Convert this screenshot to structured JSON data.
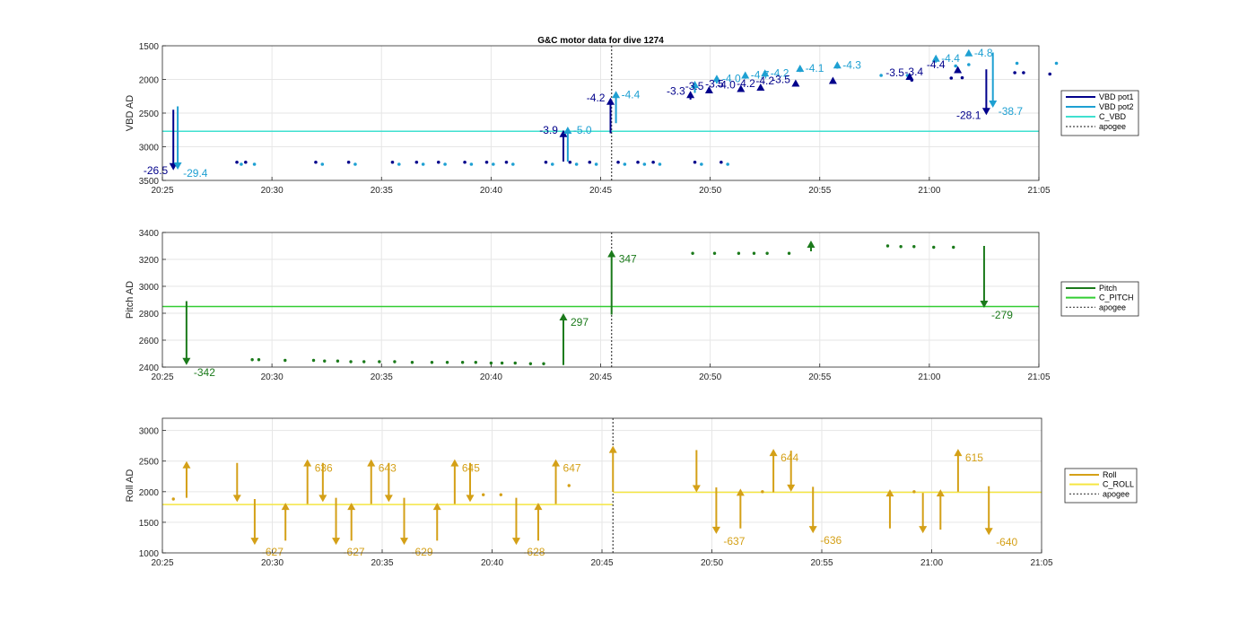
{
  "chart_data": [
    {
      "type": "scatter",
      "title": "G&C motor data for dive 1274",
      "xlabel": "",
      "ylabel": "VBD AD",
      "x_ticks": [
        "20:25",
        "20:30",
        "20:35",
        "20:40",
        "20:45",
        "20:50",
        "20:55",
        "21:00",
        "21:05"
      ],
      "xlim_min": [
        0,
        40
      ],
      "y_ticks": [
        "1500",
        "2000",
        "2500",
        "3000",
        "3500"
      ],
      "ylim": [
        1500,
        3500
      ],
      "y_reversed": true,
      "grid": true,
      "legend_placement": "outside-right",
      "legend": [
        {
          "label": "VBD pot1",
          "style": "solid",
          "color": "#00008b"
        },
        {
          "label": "VBD pot2",
          "style": "solid",
          "color": "#1ea0d2"
        },
        {
          "label": "C_VBD",
          "style": "solid",
          "color": "#40e0d0"
        },
        {
          "label": "apogee",
          "style": "dotted",
          "color": "#404040"
        }
      ],
      "reference_lines": [
        {
          "name": "C_VBD",
          "y": 2770,
          "color": "#40e0d0"
        },
        {
          "name": "apogee",
          "x": 20.5,
          "color": "#404040"
        }
      ],
      "series": [
        {
          "name": "VBD pot1",
          "color": "#00008b",
          "x": [
            3.4,
            3.8,
            7.0,
            8.5,
            10.5,
            11.6,
            12.6,
            13.8,
            14.8,
            15.7,
            17.5,
            18.6,
            19.5,
            20.8,
            21.7,
            22.4,
            24.3,
            25.5
          ],
          "y": [
            3230,
            3230,
            3230,
            3230,
            3230,
            3230,
            3230,
            3230,
            3230,
            3230,
            3230,
            3230,
            3230,
            3230,
            3230,
            3230,
            3230,
            3230
          ]
        },
        {
          "name": "VBD pot2",
          "color": "#1ea0d2",
          "x": [
            3.6,
            4.2,
            7.3,
            8.8,
            10.8,
            11.9,
            12.9,
            14.1,
            15.1,
            16.0,
            17.8,
            18.9,
            19.8,
            21.1,
            22.0,
            22.7,
            24.6,
            25.8
          ],
          "y": [
            3260,
            3260,
            3260,
            3260,
            3260,
            3260,
            3260,
            3260,
            3260,
            3260,
            3260,
            3260,
            3260,
            3260,
            3260,
            3260,
            3260,
            3260
          ]
        },
        {
          "name": "VBD pot1 (post-apogee)",
          "color": "#00008b",
          "x": [
            34.2,
            36.0,
            36.5,
            38.9,
            39.3,
            40.5
          ],
          "y": [
            2010,
            1980,
            1975,
            1900,
            1900,
            1920
          ]
        },
        {
          "name": "VBD pot2 (post-apogee)",
          "color": "#1ea0d2",
          "x": [
            32.8,
            34.0,
            36.2,
            36.8,
            39.0,
            40.8
          ],
          "y": [
            1940,
            1940,
            1800,
            1780,
            1760,
            1760
          ]
        }
      ],
      "moves": [
        {
          "series": "VBD pot1",
          "x": 0.5,
          "y_from": 2450,
          "y_to": 3350,
          "label": "-26.5"
        },
        {
          "series": "VBD pot2",
          "x": 0.7,
          "y_from": 2400,
          "y_to": 3340,
          "label": "-29.4"
        },
        {
          "series": "VBD pot1",
          "x": 18.3,
          "y_from": 3220,
          "y_to": 2750,
          "label": "-3.9"
        },
        {
          "series": "VBD pot2",
          "x": 18.5,
          "y_from": 3220,
          "y_to": 2700,
          "label": "-5.0"
        },
        {
          "series": "VBD pot1",
          "x": 20.45,
          "y_from": 2800,
          "y_to": 2270,
          "label": "-4.2"
        },
        {
          "series": "VBD pot2",
          "x": 20.7,
          "y_from": 2650,
          "y_to": 2170,
          "label": "-4.4"
        },
        {
          "series": "VBD pot1",
          "x": 24.1,
          "y_from": 2300,
          "y_to": 2170,
          "label": "-3.3"
        },
        {
          "series": "VBD pot2",
          "x": 24.3,
          "y_from": 2200,
          "y_to": 2020,
          "label": ""
        },
        {
          "series": "VBD pot1",
          "x": 24.95,
          "y_from": 2180,
          "y_to": 2100,
          "label": "-3.5"
        },
        {
          "series": "VBD pot2",
          "x": 25.3,
          "y_from": 2060,
          "y_to": 1930,
          "label": "-4.0"
        },
        {
          "series": "VBD pot1",
          "x": 26.4,
          "y_from": 2160,
          "y_to": 2080,
          "label": "-4.0"
        },
        {
          "series": "VBD pot2",
          "x": 26.6,
          "y_from": 1990,
          "y_to": 1880,
          "label": "-4.7"
        },
        {
          "series": "VBD pot1",
          "x": 27.3,
          "y_from": 2140,
          "y_to": 2060,
          "label": "-4.2"
        },
        {
          "series": "VBD pot2",
          "x": 27.5,
          "y_from": 1960,
          "y_to": 1850,
          "label": "-4.2"
        },
        {
          "series": "VBD pot1",
          "x": 28.9,
          "y_from": 2080,
          "y_to": 2000,
          "label": "-3.5"
        },
        {
          "series": "VBD pot2",
          "x": 29.1,
          "y_from": 1890,
          "y_to": 1780,
          "label": "-4.1"
        },
        {
          "series": "VBD pot1",
          "x": 30.6,
          "y_from": 2040,
          "y_to": 1960,
          "label": ""
        },
        {
          "series": "VBD pot2",
          "x": 30.8,
          "y_from": 1840,
          "y_to": 1730,
          "label": "-4.3"
        },
        {
          "series": "VBD pot1",
          "x": 34.1,
          "y_from": 1990,
          "y_to": 1900,
          "label": "-3.5"
        },
        {
          "series": "VBD pot2",
          "x": 35.3,
          "y_from": 1750,
          "y_to": 1630,
          "label": "-4.4"
        },
        {
          "series": "VBD pot1",
          "x": 36.3,
          "y_from": 1900,
          "y_to": 1800,
          "label": ""
        },
        {
          "series": "VBD pot2",
          "x": 36.8,
          "y_from": 1650,
          "y_to": 1550,
          "label": "-4.8"
        },
        {
          "series": "VBD pot1",
          "x": 37.6,
          "y_from": 1850,
          "y_to": 2530,
          "label": "-28.1"
        },
        {
          "series": "VBD pot2",
          "x": 37.9,
          "y_from": 1600,
          "y_to": 2420,
          "label": "-38.7"
        }
      ],
      "extra_labels": [
        {
          "text": "-3.4",
          "x": 34.3,
          "y": 1940
        },
        {
          "text": "-4.4",
          "x": 35.3,
          "y": 1830
        },
        {
          "text": "-4.2",
          "x": 27.5,
          "y": 2070
        },
        {
          "text": "-3.5",
          "x": 25.2,
          "y": 2120
        }
      ]
    },
    {
      "type": "scatter",
      "xlabel": "",
      "ylabel": "Pitch AD",
      "x_ticks": [
        "20:25",
        "20:30",
        "20:35",
        "20:40",
        "20:45",
        "20:50",
        "20:55",
        "21:00",
        "21:05"
      ],
      "xlim_min": [
        0,
        40
      ],
      "y_ticks": [
        "2400",
        "2600",
        "2800",
        "3000",
        "3200",
        "3400"
      ],
      "ylim": [
        2400,
        3400
      ],
      "grid": true,
      "legend_placement": "outside-right",
      "legend": [
        {
          "label": "Pitch",
          "style": "solid",
          "color": "#1b7a1b"
        },
        {
          "label": "C_PITCH",
          "style": "solid",
          "color": "#32cd32"
        },
        {
          "label": "apogee",
          "style": "dotted",
          "color": "#404040"
        }
      ],
      "reference_lines": [
        {
          "name": "C_PITCH",
          "y": 2850,
          "color": "#32cd32"
        },
        {
          "name": "apogee",
          "x": 20.5,
          "color": "#404040"
        }
      ],
      "series": [
        {
          "name": "Pitch",
          "color": "#1b7a1b",
          "x": [
            3.5,
            4.2,
            5.5,
            6.2,
            7.5,
            8.1,
            8.8,
            9.5,
            10.1,
            10.9,
            11.7,
            12.5,
            13.5,
            14.3,
            15.2,
            15.9,
            16.6,
            17.3,
            18.0,
            18.7,
            19.4,
            20.1,
            21.0,
            21.6,
            22.3,
            23.1,
            24.1,
            25.1,
            26.0,
            27.0,
            27.6,
            28.4,
            29.0,
            29.5,
            31.9,
            32.4,
            33.0,
            34.4,
            35.2,
            36.1,
            36.7,
            37.6
          ],
          "y": [
            2400,
            2420,
            2440,
            2450,
            2455,
            2455,
            2450,
            2450,
            2445,
            2445,
            2440,
            2440,
            2440,
            2440,
            2440,
            2440,
            2440,
            2435,
            2435,
            2435,
            2435,
            2430,
            2430,
            2430,
            2430,
            2425,
            2425,
            2420,
            2420,
            2420,
            2415,
            2415,
            2415,
            2410,
            2410,
            2410,
            2410,
            2410,
            2410,
            2410,
            2410,
            2410
          ]
        }
      ],
      "points": [
        {
          "x": 4.4,
          "y": 2455
        },
        {
          "x": 4.1,
          "y": 2455
        },
        {
          "x": 5.6,
          "y": 2450
        },
        {
          "x": 6.9,
          "y": 2450
        },
        {
          "x": 7.4,
          "y": 2445
        },
        {
          "x": 8.0,
          "y": 2445
        },
        {
          "x": 8.6,
          "y": 2440
        },
        {
          "x": 9.2,
          "y": 2440
        },
        {
          "x": 9.9,
          "y": 2440
        },
        {
          "x": 10.6,
          "y": 2440
        },
        {
          "x": 11.4,
          "y": 2435
        },
        {
          "x": 12.3,
          "y": 2435
        },
        {
          "x": 13.0,
          "y": 2435
        },
        {
          "x": 13.7,
          "y": 2435
        },
        {
          "x": 14.3,
          "y": 2435
        },
        {
          "x": 15.0,
          "y": 2430
        },
        {
          "x": 15.5,
          "y": 2430
        },
        {
          "x": 16.1,
          "y": 2430
        },
        {
          "x": 16.8,
          "y": 2425
        },
        {
          "x": 17.4,
          "y": 2425
        },
        {
          "x": 24.2,
          "y": 3245
        },
        {
          "x": 25.2,
          "y": 3245
        },
        {
          "x": 26.3,
          "y": 3245
        },
        {
          "x": 27.0,
          "y": 3245
        },
        {
          "x": 27.6,
          "y": 3245
        },
        {
          "x": 28.6,
          "y": 3245
        },
        {
          "x": 33.1,
          "y": 3300
        },
        {
          "x": 33.7,
          "y": 3295
        },
        {
          "x": 34.3,
          "y": 3295
        },
        {
          "x": 35.2,
          "y": 3290
        },
        {
          "x": 36.1,
          "y": 3290
        }
      ],
      "moves": [
        {
          "x": 1.1,
          "y_from": 2890,
          "y_to": 2415,
          "label": "-342"
        },
        {
          "x": 18.3,
          "y_from": 2415,
          "y_to": 2800,
          "label": "297"
        },
        {
          "x": 20.5,
          "y_from": 2790,
          "y_to": 3270,
          "label": "347"
        },
        {
          "x": 29.6,
          "y_from": 3260,
          "y_to": 3340,
          "label": ""
        },
        {
          "x": 37.5,
          "y_from": 3300,
          "y_to": 2840,
          "label": "-279"
        }
      ]
    },
    {
      "type": "scatter",
      "xlabel": "",
      "ylabel": "Roll AD",
      "x_ticks": [
        "20:25",
        "20:30",
        "20:35",
        "20:40",
        "20:45",
        "20:50",
        "20:55",
        "21:00",
        "21:05"
      ],
      "xlim_min": [
        0,
        40
      ],
      "y_ticks": [
        "1000",
        "1500",
        "2000",
        "2500",
        "3000"
      ],
      "ylim": [
        1000,
        3200
      ],
      "grid": true,
      "legend_placement": "outside-right",
      "legend": [
        {
          "label": "Roll",
          "style": "solid",
          "color": "#d4a017"
        },
        {
          "label": "C_ROLL",
          "style": "solid",
          "color": "#f5e642"
        },
        {
          "label": "apogee",
          "style": "dotted",
          "color": "#404040"
        }
      ],
      "reference_lines": [
        {
          "name": "C_ROLL pre",
          "y": 1790,
          "x_range": [
            0,
            20.5
          ],
          "color": "#f5e642"
        },
        {
          "name": "C_ROLL post",
          "y": 1990,
          "x_range": [
            20.5,
            40
          ],
          "color": "#f5e642"
        },
        {
          "name": "apogee",
          "x": 20.5,
          "color": "#404040"
        }
      ],
      "points": [
        {
          "x": 0.5,
          "y": 1880
        },
        {
          "x": 14.6,
          "y": 1950
        },
        {
          "x": 15.4,
          "y": 1950
        },
        {
          "x": 18.5,
          "y": 2100
        },
        {
          "x": 27.3,
          "y": 2000
        },
        {
          "x": 34.2,
          "y": 2000
        }
      ],
      "moves": [
        {
          "x": 1.1,
          "y_from": 1900,
          "y_to": 2500,
          "label": ""
        },
        {
          "x": 3.4,
          "y_from": 2470,
          "y_to": 1830,
          "label": ""
        },
        {
          "x": 4.2,
          "y_from": 1880,
          "y_to": 1130,
          "label": "-627"
        },
        {
          "x": 5.6,
          "y_from": 1200,
          "y_to": 1820,
          "label": ""
        },
        {
          "x": 6.6,
          "y_from": 1800,
          "y_to": 2530,
          "label": "636"
        },
        {
          "x": 7.3,
          "y_from": 2470,
          "y_to": 1830,
          "label": ""
        },
        {
          "x": 7.9,
          "y_from": 1900,
          "y_to": 1130,
          "label": "-627"
        },
        {
          "x": 8.6,
          "y_from": 1200,
          "y_to": 1820,
          "label": ""
        },
        {
          "x": 9.5,
          "y_from": 1800,
          "y_to": 2530,
          "label": "643"
        },
        {
          "x": 10.3,
          "y_from": 2470,
          "y_to": 1830,
          "label": ""
        },
        {
          "x": 11.0,
          "y_from": 1900,
          "y_to": 1130,
          "label": "-629"
        },
        {
          "x": 12.5,
          "y_from": 1200,
          "y_to": 1820,
          "label": ""
        },
        {
          "x": 13.3,
          "y_from": 1800,
          "y_to": 2530,
          "label": "645"
        },
        {
          "x": 14.0,
          "y_from": 2470,
          "y_to": 1830,
          "label": ""
        },
        {
          "x": 16.1,
          "y_from": 1900,
          "y_to": 1130,
          "label": "-628"
        },
        {
          "x": 17.1,
          "y_from": 1200,
          "y_to": 1820,
          "label": ""
        },
        {
          "x": 17.9,
          "y_from": 1800,
          "y_to": 2530,
          "label": "647"
        },
        {
          "x": 20.5,
          "y_from": 2000,
          "y_to": 2750,
          "label": ""
        },
        {
          "x": 24.3,
          "y_from": 2680,
          "y_to": 1990,
          "label": ""
        },
        {
          "x": 25.2,
          "y_from": 2070,
          "y_to": 1310,
          "label": "-637"
        },
        {
          "x": 26.3,
          "y_from": 1400,
          "y_to": 2050,
          "label": ""
        },
        {
          "x": 27.8,
          "y_from": 1990,
          "y_to": 2700,
          "label": "644"
        },
        {
          "x": 28.6,
          "y_from": 2670,
          "y_to": 2000,
          "label": ""
        },
        {
          "x": 29.6,
          "y_from": 2080,
          "y_to": 1320,
          "label": "-636"
        },
        {
          "x": 33.1,
          "y_from": 1400,
          "y_to": 2040,
          "label": ""
        },
        {
          "x": 34.6,
          "y_from": 1980,
          "y_to": 1320,
          "label": ""
        },
        {
          "x": 35.4,
          "y_from": 1380,
          "y_to": 2040,
          "label": ""
        },
        {
          "x": 36.2,
          "y_from": 2000,
          "y_to": 2700,
          "label": "615"
        },
        {
          "x": 37.6,
          "y_from": 2090,
          "y_to": 1290,
          "label": "-640"
        }
      ]
    }
  ],
  "colors": {
    "axis": "#262626",
    "grid": "#e6e6e6",
    "pot1": "#00008b",
    "pot2": "#1ea0d2",
    "c_vbd": "#40e0d0",
    "pitch": "#1b7a1b",
    "c_pitch": "#32cd32",
    "roll": "#d4a017",
    "c_roll": "#f5e642",
    "apogee": "#404040"
  }
}
